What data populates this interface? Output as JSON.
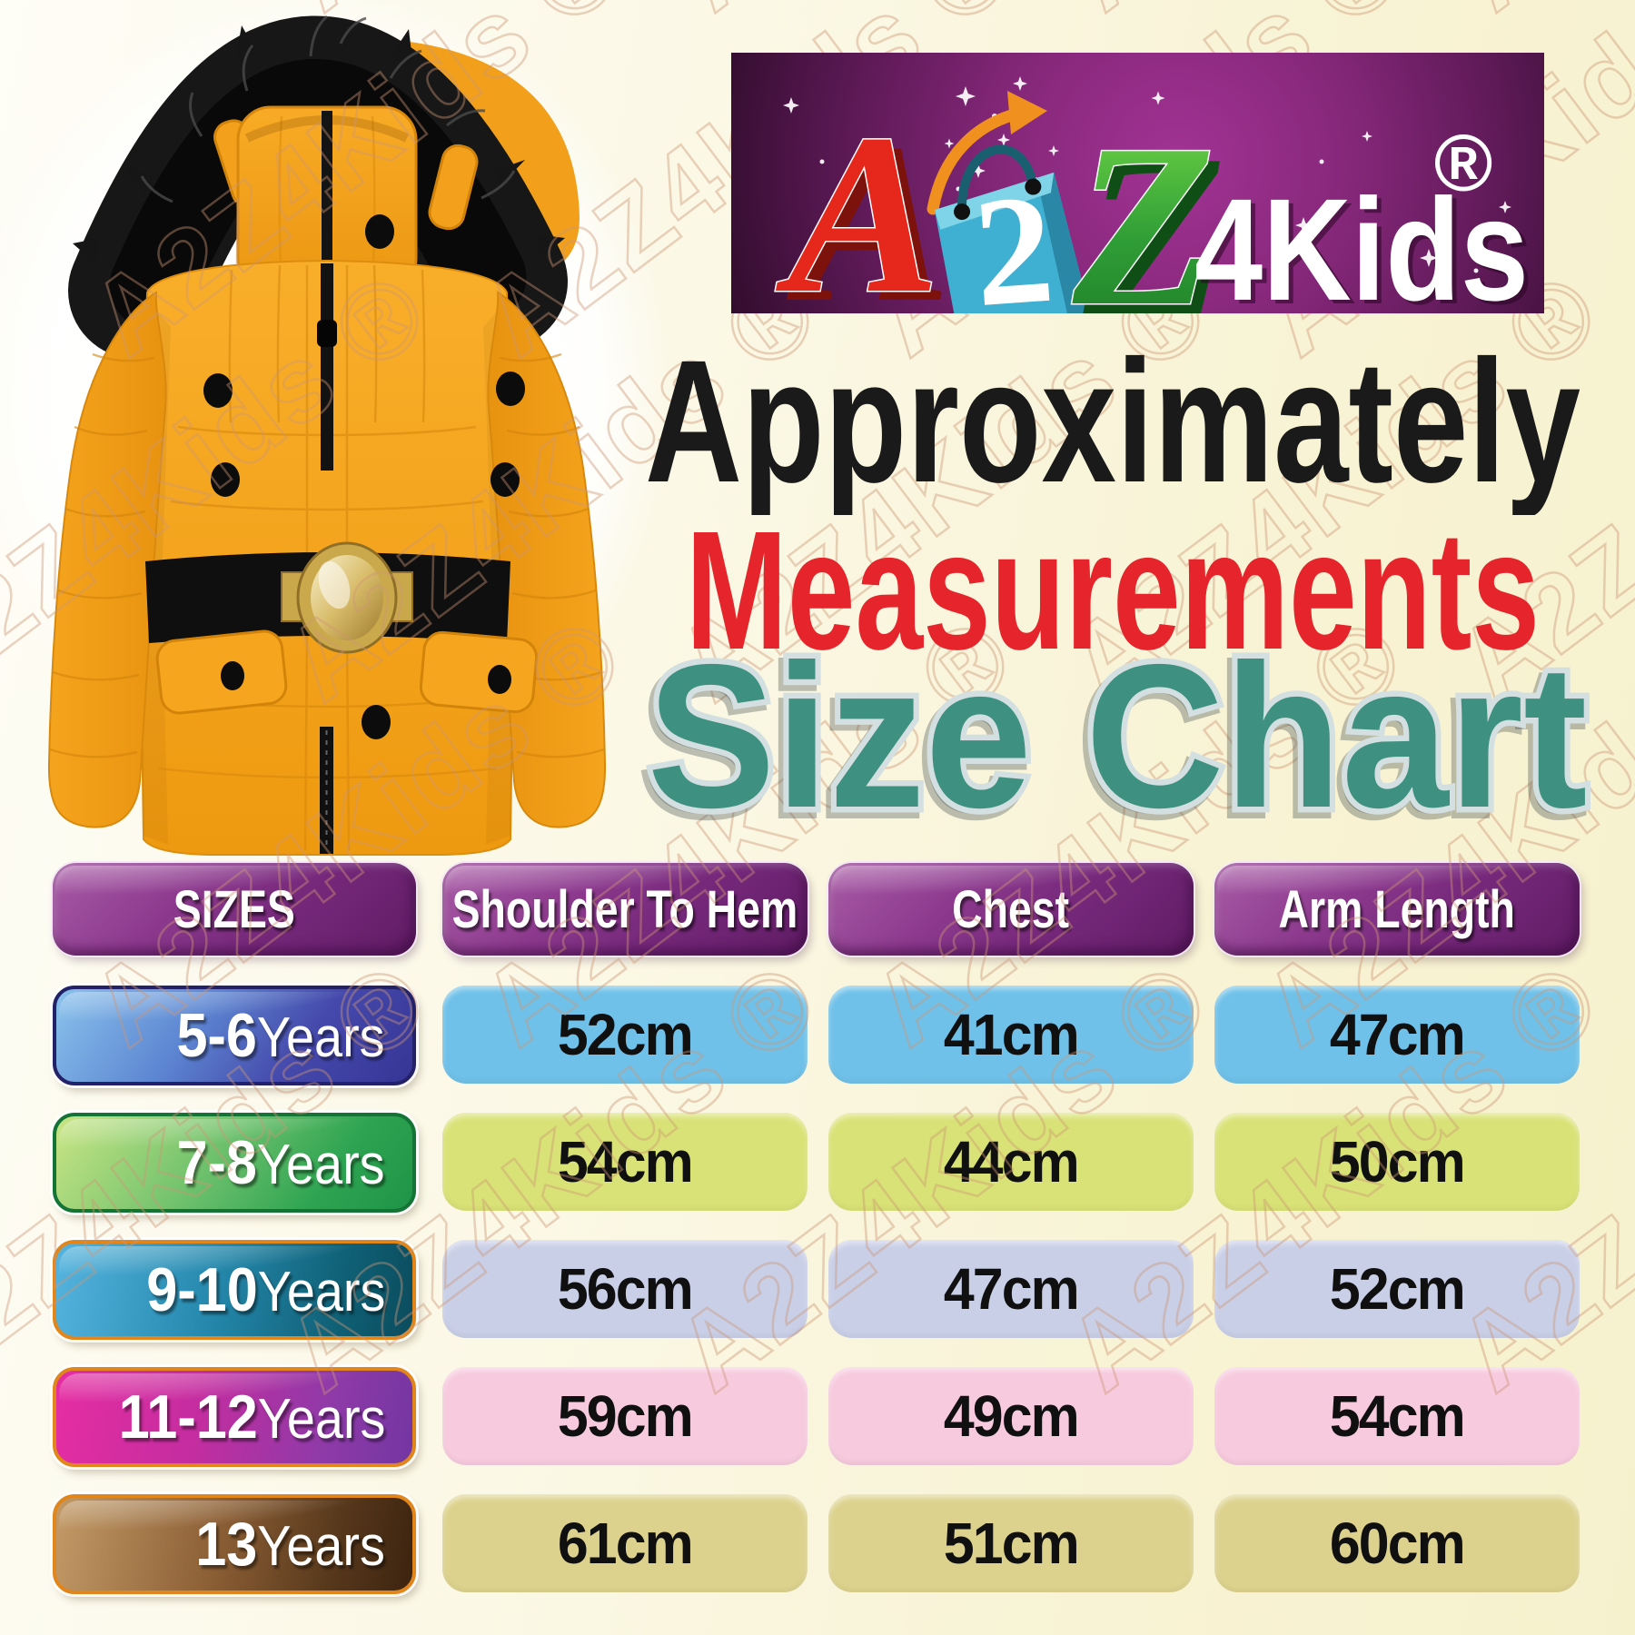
{
  "watermark": {
    "text": "A2Z4Kids ®"
  },
  "brand": {
    "letter_a": "A",
    "digit": "2",
    "letter_z": "Z",
    "suffix": "4Kids",
    "registered": "®"
  },
  "headings": {
    "line1": "Approximately",
    "line2": "Measurements",
    "line3": "Size Chart"
  },
  "table": {
    "headers": [
      "SIZES",
      "Shoulder To Hem",
      "Chest",
      "Arm Length"
    ],
    "rows": [
      {
        "size": "5-6",
        "size_suffix": "Years",
        "shoulder_to_hem": "52cm",
        "chest": "41cm",
        "arm_length": "47cm"
      },
      {
        "size": "7-8",
        "size_suffix": "Years",
        "shoulder_to_hem": "54cm",
        "chest": "44cm",
        "arm_length": "50cm"
      },
      {
        "size": "9-10",
        "size_suffix": "Years",
        "shoulder_to_hem": "56cm",
        "chest": "47cm",
        "arm_length": "52cm"
      },
      {
        "size": "11-12",
        "size_suffix": "Years",
        "shoulder_to_hem": "59cm",
        "chest": "49cm",
        "arm_length": "54cm"
      },
      {
        "size": "13",
        "size_suffix": "Years",
        "shoulder_to_hem": "61cm",
        "chest": "51cm",
        "arm_length": "60cm"
      }
    ]
  },
  "chart_data": {
    "type": "table",
    "title": "Approximately Measurements Size Chart",
    "columns": [
      "SIZES",
      "Shoulder To Hem",
      "Chest",
      "Arm Length"
    ],
    "rows": [
      [
        "5-6 Years",
        "52cm",
        "41cm",
        "47cm"
      ],
      [
        "7-8 Years",
        "54cm",
        "44cm",
        "50cm"
      ],
      [
        "9-10 Years",
        "56cm",
        "47cm",
        "52cm"
      ],
      [
        "11-12 Years",
        "59cm",
        "49cm",
        "54cm"
      ],
      [
        "13 Years",
        "61cm",
        "51cm",
        "60cm"
      ]
    ],
    "units": "cm"
  },
  "colors": {
    "background_cream": "#f8f3d4",
    "heading_black": "#1a1a1a",
    "heading_red": "#e5252b",
    "heading_teal": "#3e9180",
    "header_purple": "#77297c",
    "row_cell_colors": [
      "#6fc1e9",
      "#d9e276",
      "#c9cfe7",
      "#f7cade",
      "#ddd28d"
    ],
    "jacket_orange": "#f6a41f",
    "logo_background": "#87287b"
  }
}
